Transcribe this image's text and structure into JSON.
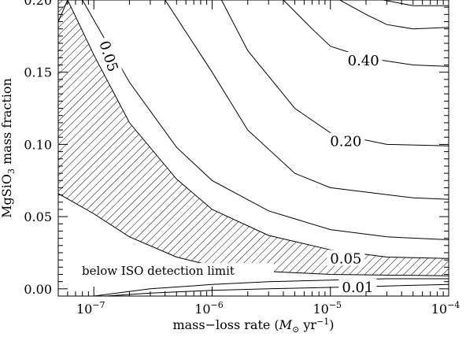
{
  "chart_data": {
    "type": "contour",
    "xlabel_text": "mass−loss rate (",
    "xlabel_symbol": "M",
    "xlabel_sub": "⊙",
    "xlabel_unit": " yr",
    "xlabel_exp": "−1",
    "xlabel_close": ")",
    "ylabel_text": "MgSiO",
    "ylabel_sub": "3",
    "ylabel_rest": " mass fraction",
    "x_scale": "log",
    "xlim": [
      5e-08,
      0.0001
    ],
    "ylim": [
      -0.005,
      0.2
    ],
    "x_ticks": [
      {
        "value": 1e-07,
        "base": "10",
        "exp": "−7"
      },
      {
        "value": 1e-06,
        "base": "10",
        "exp": "−6"
      },
      {
        "value": 1e-05,
        "base": "10",
        "exp": "−5"
      },
      {
        "value": 0.0001,
        "base": "10",
        "exp": "−4"
      }
    ],
    "y_ticks": [
      {
        "value": 0.0,
        "label": "0.00"
      },
      {
        "value": 0.05,
        "label": "0.05"
      },
      {
        "value": 0.1,
        "label": "0.10"
      },
      {
        "value": 0.15,
        "label": "0.15"
      },
      {
        "value": 0.2,
        "label": "0.20"
      }
    ],
    "contours": [
      {
        "level": 0.01,
        "label": "0.01",
        "points": [
          [
            1.26e-07,
            -0.005
          ],
          [
            3e-07,
            -0.003
          ],
          [
            1e-06,
            -0.001
          ],
          [
            3e-06,
            0.0
          ],
          [
            1e-05,
            0.001
          ],
          [
            3e-05,
            0.002
          ],
          [
            0.0001,
            0.003
          ]
        ]
      },
      {
        "level": 0.02,
        "points": [
          [
            1e-07,
            -0.005
          ],
          [
            3e-07,
            0.0
          ],
          [
            1e-06,
            0.003
          ],
          [
            3e-06,
            0.005
          ],
          [
            1e-05,
            0.006
          ],
          [
            3e-05,
            0.007
          ],
          [
            0.0001,
            0.007
          ]
        ]
      },
      {
        "level": 0.03,
        "points": [
          [
            5e-08,
            0.066
          ],
          [
            1e-07,
            0.052
          ],
          [
            2e-07,
            0.036
          ],
          [
            5e-07,
            0.022
          ],
          [
            1e-06,
            0.016
          ],
          [
            3e-06,
            0.012
          ],
          [
            1e-05,
            0.01
          ],
          [
            0.0001,
            0.009
          ]
        ]
      },
      {
        "level": 0.05,
        "label": "0.05",
        "points": [
          [
            5e-08,
            0.185
          ],
          [
            6e-08,
            0.2
          ],
          [
            1e-07,
            0.162
          ],
          [
            2e-07,
            0.115
          ],
          [
            5e-07,
            0.076
          ],
          [
            1e-06,
            0.055
          ],
          [
            3e-06,
            0.037
          ],
          [
            1e-05,
            0.027
          ],
          [
            3e-05,
            0.022
          ],
          [
            0.0001,
            0.021
          ]
        ]
      },
      {
        "level": 0.1,
        "points": [
          [
            8e-08,
            0.2
          ],
          [
            2e-07,
            0.143
          ],
          [
            5e-07,
            0.098
          ],
          [
            1e-06,
            0.075
          ],
          [
            3e-06,
            0.054
          ],
          [
            1e-05,
            0.041
          ],
          [
            3e-05,
            0.036
          ],
          [
            0.0001,
            0.034
          ]
        ]
      },
      {
        "level": 0.15,
        "points": [
          [
            4e-07,
            0.2
          ],
          [
            1e-06,
            0.15
          ],
          [
            2e-06,
            0.11
          ],
          [
            5e-06,
            0.08
          ],
          [
            1e-05,
            0.07
          ],
          [
            5e-05,
            0.063
          ],
          [
            0.0001,
            0.062
          ]
        ]
      },
      {
        "level": 0.2,
        "label": "0.20",
        "points": [
          [
            1.2e-06,
            0.2
          ],
          [
            2e-06,
            0.165
          ],
          [
            5e-06,
            0.125
          ],
          [
            1e-05,
            0.108
          ],
          [
            3e-05,
            0.1
          ],
          [
            0.0001,
            0.099
          ]
        ]
      },
      {
        "level": 0.3,
        "points": [
          [
            4e-06,
            0.2
          ],
          [
            7e-06,
            0.18
          ],
          [
            1e-05,
            0.168
          ],
          [
            2e-05,
            0.16
          ],
          [
            5e-05,
            0.155
          ],
          [
            0.0001,
            0.154
          ]
        ]
      },
      {
        "level": 0.4,
        "label": "0.40",
        "points": [
          [
            1.2e-05,
            0.2
          ],
          [
            2e-05,
            0.19
          ],
          [
            3e-05,
            0.183
          ],
          [
            5e-05,
            0.18
          ],
          [
            0.0001,
            0.181
          ]
        ]
      },
      {
        "level": 0.5,
        "points": [
          [
            2.8e-05,
            0.2
          ],
          [
            5e-05,
            0.196
          ],
          [
            0.0001,
            0.196
          ]
        ]
      }
    ],
    "hatched_region": {
      "description_text": "below ISO detection limit",
      "upper_boundary_level": 0.05,
      "lower_boundary_level": 0.03
    },
    "grid": false,
    "legend": "none"
  }
}
